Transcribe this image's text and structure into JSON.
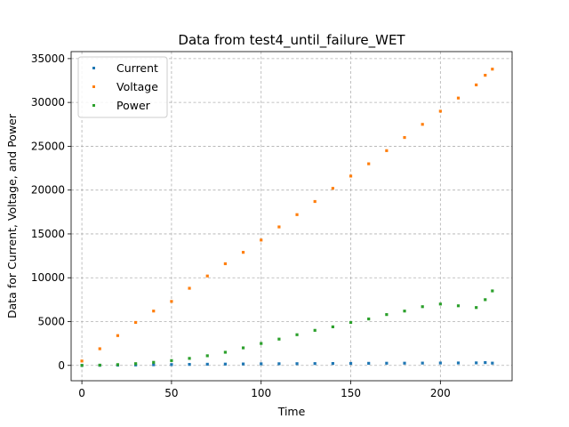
{
  "chart_data": {
    "type": "scatter",
    "title": "Data from test4_until_failure_WET",
    "xlabel": "Time",
    "ylabel": "Data for Current, Voltage, and Power",
    "xlim": [
      -6,
      240
    ],
    "ylim": [
      -1750,
      35800
    ],
    "xticks": [
      0,
      50,
      100,
      150,
      200
    ],
    "yticks": [
      0,
      5000,
      10000,
      15000,
      20000,
      25000,
      30000,
      35000
    ],
    "grid": true,
    "grid_style": "dashed",
    "legend_position": "top-left",
    "series": [
      {
        "name": "Current",
        "color": "#1f77b4",
        "x": [
          0,
          10,
          20,
          30,
          40,
          50,
          60,
          70,
          80,
          90,
          100,
          110,
          120,
          130,
          140,
          150,
          160,
          170,
          180,
          190,
          200,
          210,
          220,
          225,
          229
        ],
        "values": [
          0,
          12,
          28,
          50,
          75,
          95,
          115,
          135,
          150,
          165,
          180,
          190,
          200,
          210,
          220,
          230,
          240,
          250,
          255,
          265,
          275,
          280,
          290,
          320,
          260
        ]
      },
      {
        "name": "Voltage",
        "color": "#ff7f0e",
        "x": [
          0,
          10,
          20,
          30,
          40,
          50,
          60,
          70,
          80,
          90,
          100,
          110,
          120,
          130,
          140,
          150,
          160,
          170,
          180,
          190,
          200,
          210,
          220,
          225,
          229
        ],
        "values": [
          500,
          1900,
          3400,
          4900,
          6200,
          7300,
          8800,
          10200,
          11600,
          12900,
          14300,
          15800,
          17200,
          18700,
          20200,
          21600,
          23000,
          24500,
          26000,
          27500,
          29000,
          30500,
          32000,
          33100,
          33800
        ]
      },
      {
        "name": "Power",
        "color": "#2ca02c",
        "x": [
          0,
          10,
          20,
          30,
          40,
          50,
          60,
          70,
          80,
          90,
          100,
          110,
          120,
          130,
          140,
          150,
          160,
          170,
          180,
          190,
          200,
          210,
          220,
          225,
          229
        ],
        "values": [
          0,
          30,
          90,
          200,
          350,
          550,
          800,
          1100,
          1500,
          2000,
          2500,
          3000,
          3500,
          4000,
          4400,
          4900,
          5300,
          5800,
          6200,
          6700,
          7000,
          6800,
          6600,
          7500,
          8500
        ]
      }
    ]
  }
}
